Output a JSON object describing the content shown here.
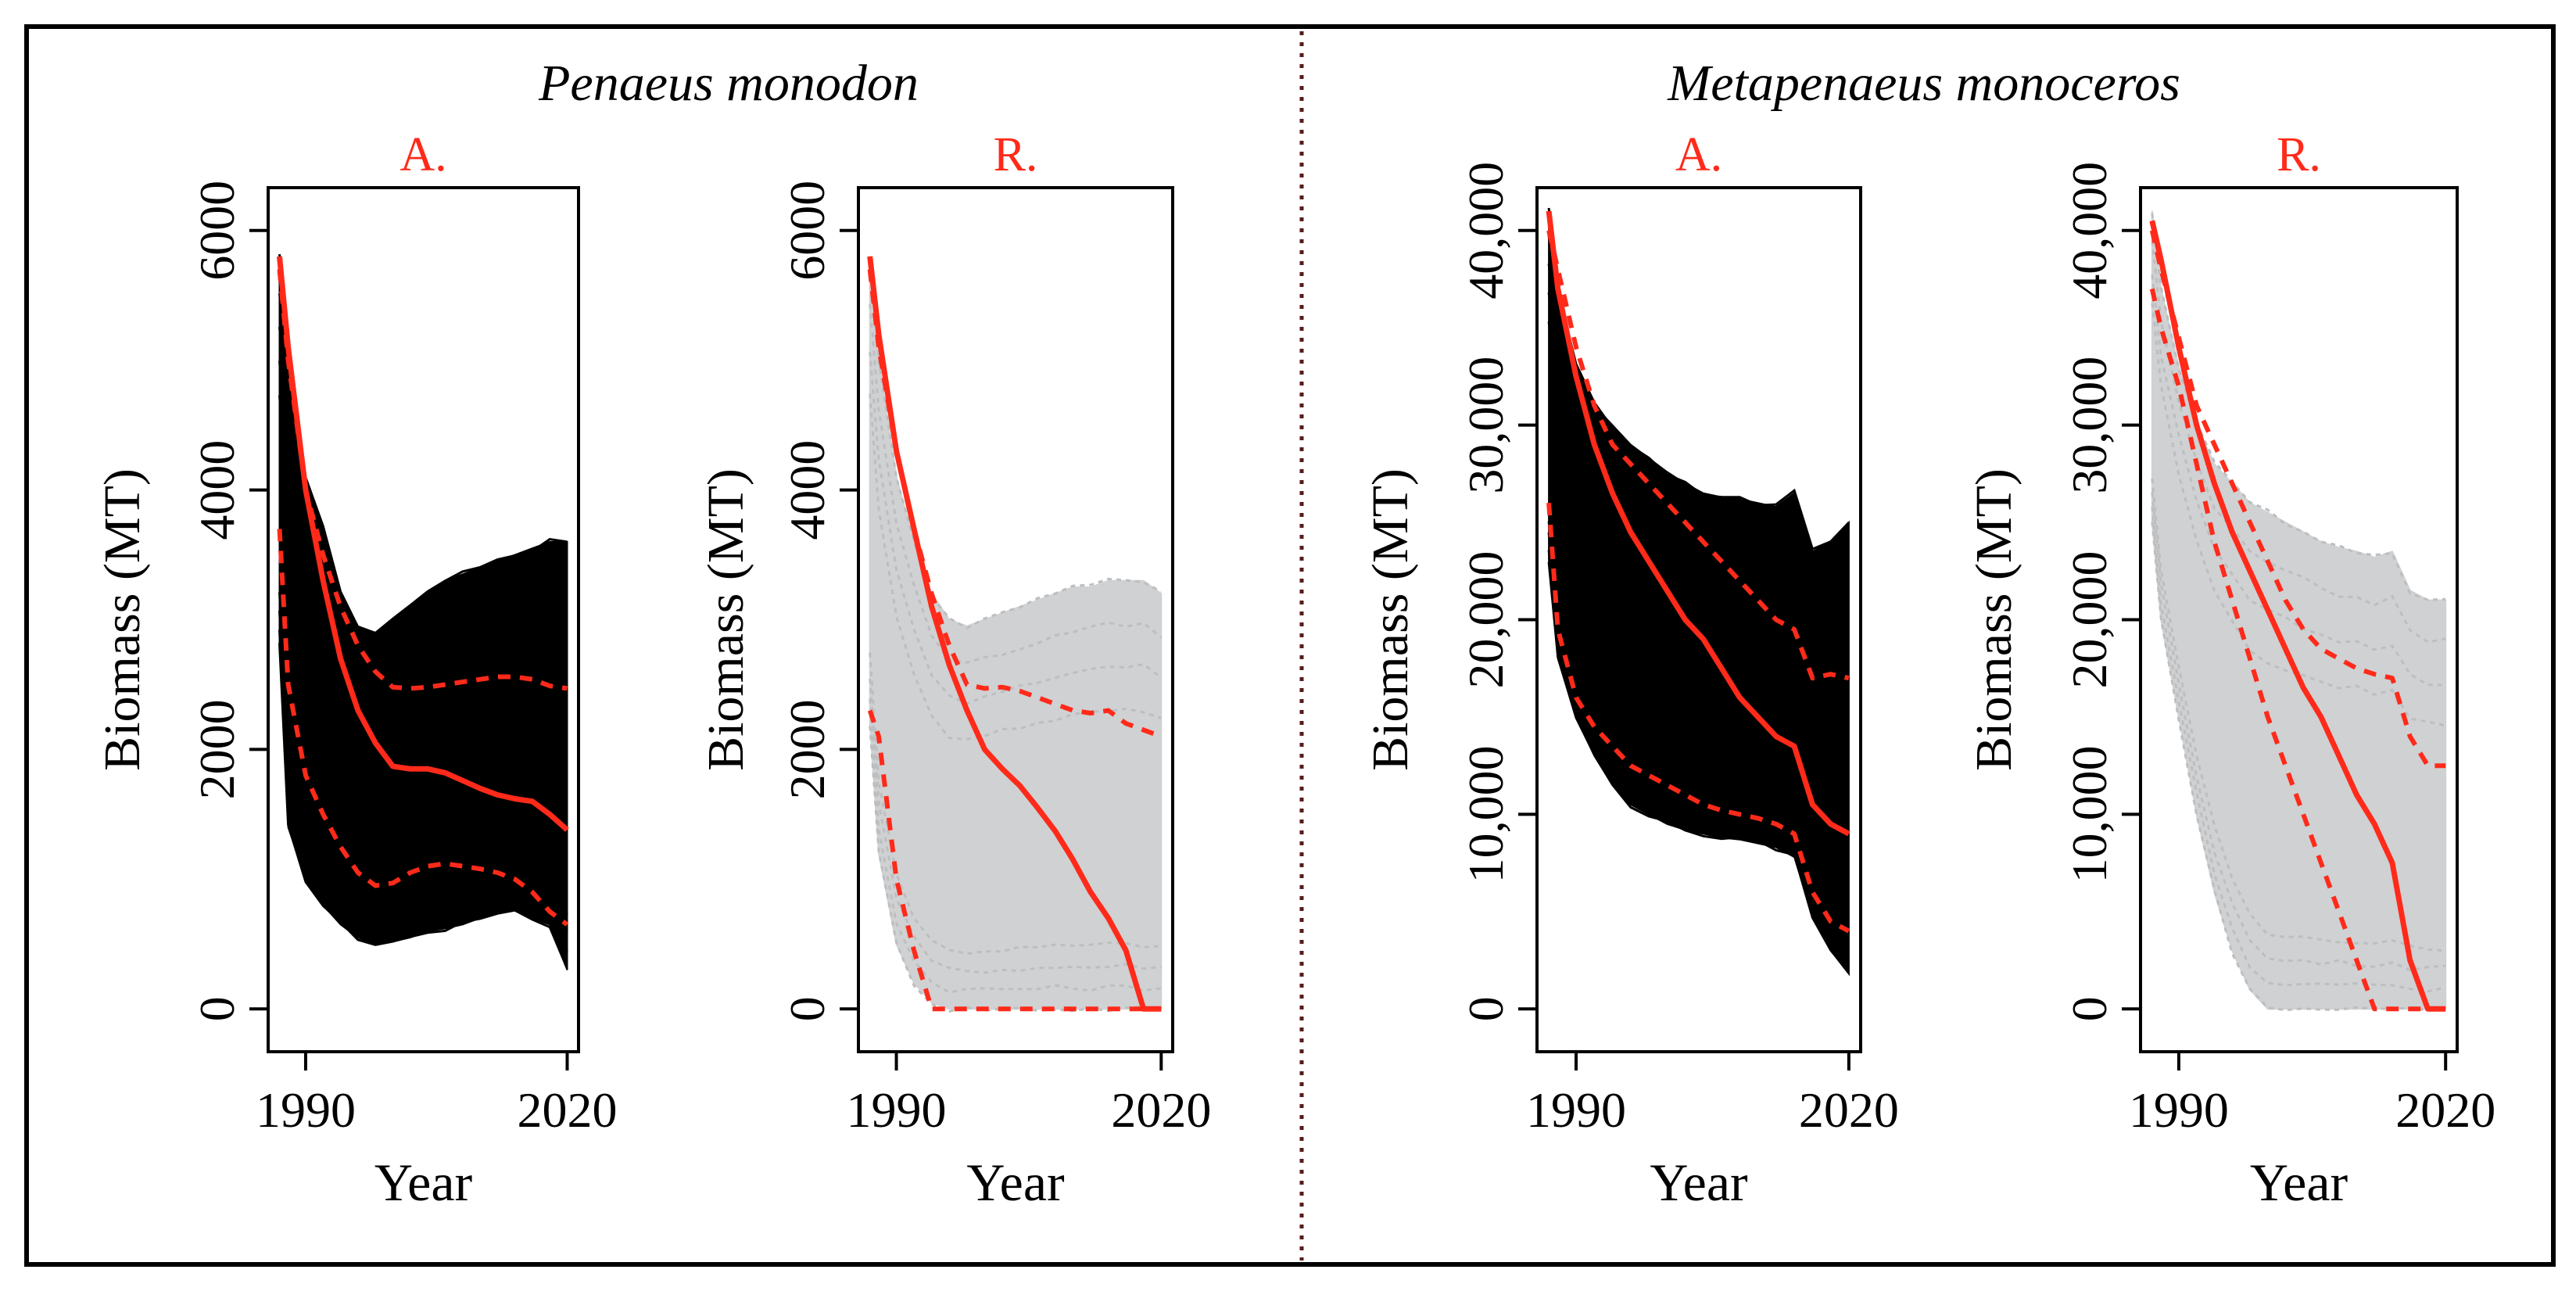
{
  "figure": {
    "colors": {
      "red": "#ff2a1a",
      "black": "#000000",
      "gray": "#cfd1d3",
      "divider": "#5a1a1a"
    }
  },
  "species": [
    {
      "name": "Penaeus monodon"
    },
    {
      "name": "Metapenaeus monoceros"
    }
  ],
  "chart_data": [
    {
      "type": "line",
      "species": "Penaeus monodon",
      "panel": "A.",
      "xlabel": "Year",
      "ylabel": "Biomass (MT)",
      "xlim": [
        1987,
        2020
      ],
      "ylim": [
        0,
        6000
      ],
      "xticks": [
        1990,
        2020
      ],
      "xtick_labels": [
        "1990",
        "2020"
      ],
      "yticks": [
        0,
        2000,
        4000,
        6000
      ],
      "ytick_labels": [
        "0",
        "2000",
        "4000",
        "6000"
      ],
      "ensemble_color": "black",
      "x": [
        1987,
        1988,
        1990,
        1992,
        1994,
        1996,
        1998,
        2000,
        2002,
        2004,
        2006,
        2008,
        2010,
        2012,
        2014,
        2016,
        2018,
        2020
      ],
      "envelope": {
        "upper": [
          5800,
          5100,
          4100,
          3700,
          3200,
          2950,
          2900,
          3000,
          3100,
          3200,
          3300,
          3350,
          3400,
          3450,
          3500,
          3550,
          3600,
          3600
        ],
        "lower": [
          2800,
          1400,
          1000,
          800,
          650,
          550,
          500,
          520,
          550,
          600,
          620,
          650,
          700,
          750,
          760,
          700,
          650,
          300
        ]
      },
      "ensemble_traces": 9,
      "series": [
        {
          "name": "median",
          "style": "solid",
          "values": [
            5800,
            5100,
            4000,
            3300,
            2700,
            2300,
            2050,
            1870,
            1850,
            1850,
            1820,
            1760,
            1700,
            1650,
            1620,
            1600,
            1500,
            1380
          ]
        },
        {
          "name": "upper",
          "style": "dashed",
          "values": [
            5700,
            5000,
            4000,
            3500,
            3100,
            2800,
            2600,
            2480,
            2470,
            2480,
            2500,
            2520,
            2540,
            2560,
            2560,
            2540,
            2490,
            2470
          ]
        },
        {
          "name": "lower",
          "style": "dashed",
          "values": [
            3700,
            2500,
            1800,
            1500,
            1250,
            1050,
            950,
            970,
            1050,
            1100,
            1120,
            1100,
            1080,
            1050,
            1000,
            900,
            750,
            650
          ]
        }
      ]
    },
    {
      "type": "line",
      "species": "Penaeus monodon",
      "panel": "R.",
      "xlabel": "Year",
      "ylabel": "Biomass (MT)",
      "xlim": [
        1987,
        2020
      ],
      "ylim": [
        0,
        6000
      ],
      "xticks": [
        1990,
        2020
      ],
      "xtick_labels": [
        "1990",
        "2020"
      ],
      "yticks": [
        0,
        2000,
        4000,
        6000
      ],
      "ytick_labels": [
        "0",
        "2000",
        "4000",
        "6000"
      ],
      "ensemble_color": "gray",
      "x": [
        1987,
        1988,
        1990,
        1992,
        1994,
        1996,
        1998,
        2000,
        2002,
        2004,
        2006,
        2008,
        2010,
        2012,
        2014,
        2016,
        2018,
        2020
      ],
      "envelope": {
        "upper": [
          5800,
          5000,
          4100,
          3600,
          3200,
          3000,
          2950,
          3000,
          3050,
          3100,
          3150,
          3200,
          3250,
          3250,
          3300,
          3300,
          3300,
          3200
        ],
        "lower": [
          2200,
          1200,
          500,
          200,
          50,
          0,
          0,
          0,
          0,
          0,
          0,
          0,
          0,
          0,
          0,
          0,
          0,
          0
        ]
      },
      "ensemble_traces": 8,
      "series": [
        {
          "name": "median",
          "style": "solid",
          "values": [
            5800,
            5200,
            4300,
            3700,
            3100,
            2650,
            2300,
            2000,
            1850,
            1720,
            1550,
            1370,
            1150,
            900,
            700,
            450,
            0,
            0
          ]
        },
        {
          "name": "upper",
          "style": "dashed",
          "values": [
            5700,
            5100,
            4300,
            3700,
            3200,
            2800,
            2500,
            2470,
            2480,
            2450,
            2400,
            2350,
            2300,
            2280,
            2300,
            2200,
            2150,
            2100
          ]
        },
        {
          "name": "lower",
          "style": "dashed",
          "values": [
            2300,
            2100,
            1000,
            450,
            0,
            0,
            0,
            0,
            0,
            0,
            0,
            0,
            0,
            0,
            0,
            0,
            0,
            0
          ]
        }
      ]
    },
    {
      "type": "line",
      "species": "Metapenaeus monoceros",
      "panel": "A.",
      "xlabel": "Year",
      "ylabel": "Biomass (MT)",
      "xlim": [
        1987,
        2020
      ],
      "ylim": [
        0,
        40000
      ],
      "xticks": [
        1990,
        2020
      ],
      "xtick_labels": [
        "1990",
        "2020"
      ],
      "yticks": [
        0,
        10000,
        20000,
        30000,
        40000
      ],
      "ytick_labels": [
        "0",
        "10,000",
        "20,000",
        "30,000",
        "40,000"
      ],
      "ensemble_color": "black",
      "x": [
        1987,
        1988,
        1990,
        1992,
        1994,
        1996,
        1998,
        2000,
        2002,
        2004,
        2006,
        2008,
        2010,
        2012,
        2014,
        2016,
        2018,
        2020
      ],
      "envelope": {
        "upper": [
          41000,
          37000,
          33000,
          31000,
          30000,
          29000,
          28300,
          27600,
          27000,
          26500,
          26300,
          26200,
          26000,
          25800,
          26500,
          23500,
          24000,
          25000
        ],
        "lower": [
          23000,
          18000,
          15000,
          13000,
          11500,
          10500,
          10000,
          9500,
          9200,
          9000,
          8800,
          8700,
          8500,
          8300,
          7800,
          4800,
          3000,
          1800
        ]
      },
      "ensemble_traces": 10,
      "series": [
        {
          "name": "median",
          "style": "solid",
          "values": [
            41000,
            37000,
            32500,
            29000,
            26500,
            24500,
            23000,
            21500,
            20000,
            19000,
            17500,
            16000,
            15000,
            14000,
            13500,
            10500,
            9500,
            9000
          ]
        },
        {
          "name": "upper",
          "style": "dashed",
          "values": [
            40000,
            38000,
            34000,
            31000,
            29000,
            28000,
            27000,
            26000,
            25000,
            24000,
            23000,
            22000,
            21000,
            20000,
            19500,
            17000,
            17200,
            17000
          ]
        },
        {
          "name": "lower",
          "style": "dashed",
          "values": [
            26000,
            19500,
            16000,
            14500,
            13500,
            12500,
            12000,
            11500,
            11000,
            10500,
            10200,
            10000,
            9800,
            9500,
            9000,
            6000,
            4500,
            4000
          ]
        }
      ]
    },
    {
      "type": "line",
      "species": "Metapenaeus monoceros",
      "panel": "R.",
      "xlabel": "Year",
      "ylabel": "Biomass (MT)",
      "xlim": [
        1987,
        2020
      ],
      "ylim": [
        0,
        40000
      ],
      "xticks": [
        1990,
        2020
      ],
      "xtick_labels": [
        "1990",
        "2020"
      ],
      "yticks": [
        0,
        10000,
        20000,
        30000,
        40000
      ],
      "ytick_labels": [
        "0",
        "10,000",
        "20,000",
        "30,000",
        "40,000"
      ],
      "ensemble_color": "gray",
      "x": [
        1987,
        1988,
        1990,
        1992,
        1994,
        1996,
        1998,
        2000,
        2002,
        2004,
        2006,
        2008,
        2010,
        2012,
        2014,
        2016,
        2018,
        2020
      ],
      "envelope": {
        "upper": [
          41000,
          37000,
          33000,
          30000,
          28000,
          27000,
          26000,
          25500,
          25000,
          24500,
          24000,
          23700,
          23500,
          23200,
          23500,
          21500,
          21000,
          21000
        ],
        "lower": [
          25000,
          20000,
          15000,
          10000,
          6000,
          3000,
          1000,
          0,
          0,
          0,
          0,
          0,
          0,
          0,
          0,
          0,
          0,
          0
        ]
      },
      "ensemble_traces": 8,
      "series": [
        {
          "name": "median",
          "style": "solid",
          "values": [
            40500,
            38500,
            34000,
            30000,
            27000,
            24500,
            22500,
            20500,
            18500,
            16500,
            15000,
            13000,
            11000,
            9500,
            7500,
            2500,
            0,
            0
          ]
        },
        {
          "name": "upper",
          "style": "dashed",
          "values": [
            40000,
            38000,
            34500,
            31000,
            29000,
            27000,
            25000,
            23000,
            21000,
            19500,
            18500,
            18000,
            17500,
            17200,
            17000,
            14000,
            12500,
            12500
          ]
        },
        {
          "name": "lower",
          "style": "dashed",
          "values": [
            37000,
            35000,
            32000,
            28000,
            24000,
            21000,
            18000,
            15000,
            12500,
            10000,
            7500,
            5000,
            2500,
            0,
            0,
            0,
            0,
            0
          ]
        }
      ]
    }
  ]
}
